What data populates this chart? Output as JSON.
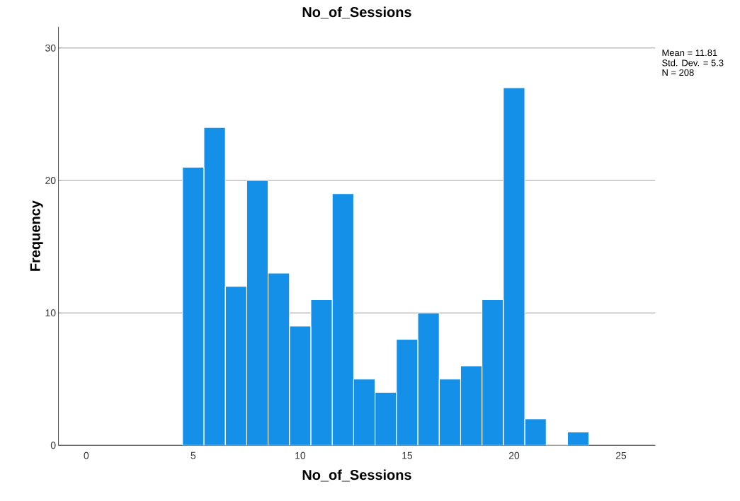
{
  "chart_data": {
    "type": "histogram",
    "title": "No_of_Sessions",
    "xlabel": "No_of_Sessions",
    "ylabel": "Frequency",
    "bins": [
      4.5,
      5.5,
      6.5,
      7.5,
      8.5,
      9.5,
      10.5,
      11.5,
      12.5,
      13.5,
      14.5,
      15.5,
      16.5,
      17.5,
      18.5,
      19.5,
      20.5,
      21.5,
      22.5,
      23.5
    ],
    "values": [
      21,
      24,
      12,
      20,
      13,
      9,
      11,
      19,
      5,
      4,
      8,
      10,
      5,
      6,
      11,
      27,
      2,
      0,
      1
    ],
    "color": "#1490e8",
    "xlim": [
      -1.3,
      26.6
    ],
    "ylim": [
      0,
      31.6
    ],
    "xticks": [
      0,
      5,
      10,
      15,
      20,
      25
    ],
    "yticks": [
      0,
      10,
      20,
      30
    ],
    "grid": "y",
    "annotations": [
      "Mean = 11.81",
      "Std. Dev. = 5.3",
      "N = 208"
    ]
  }
}
